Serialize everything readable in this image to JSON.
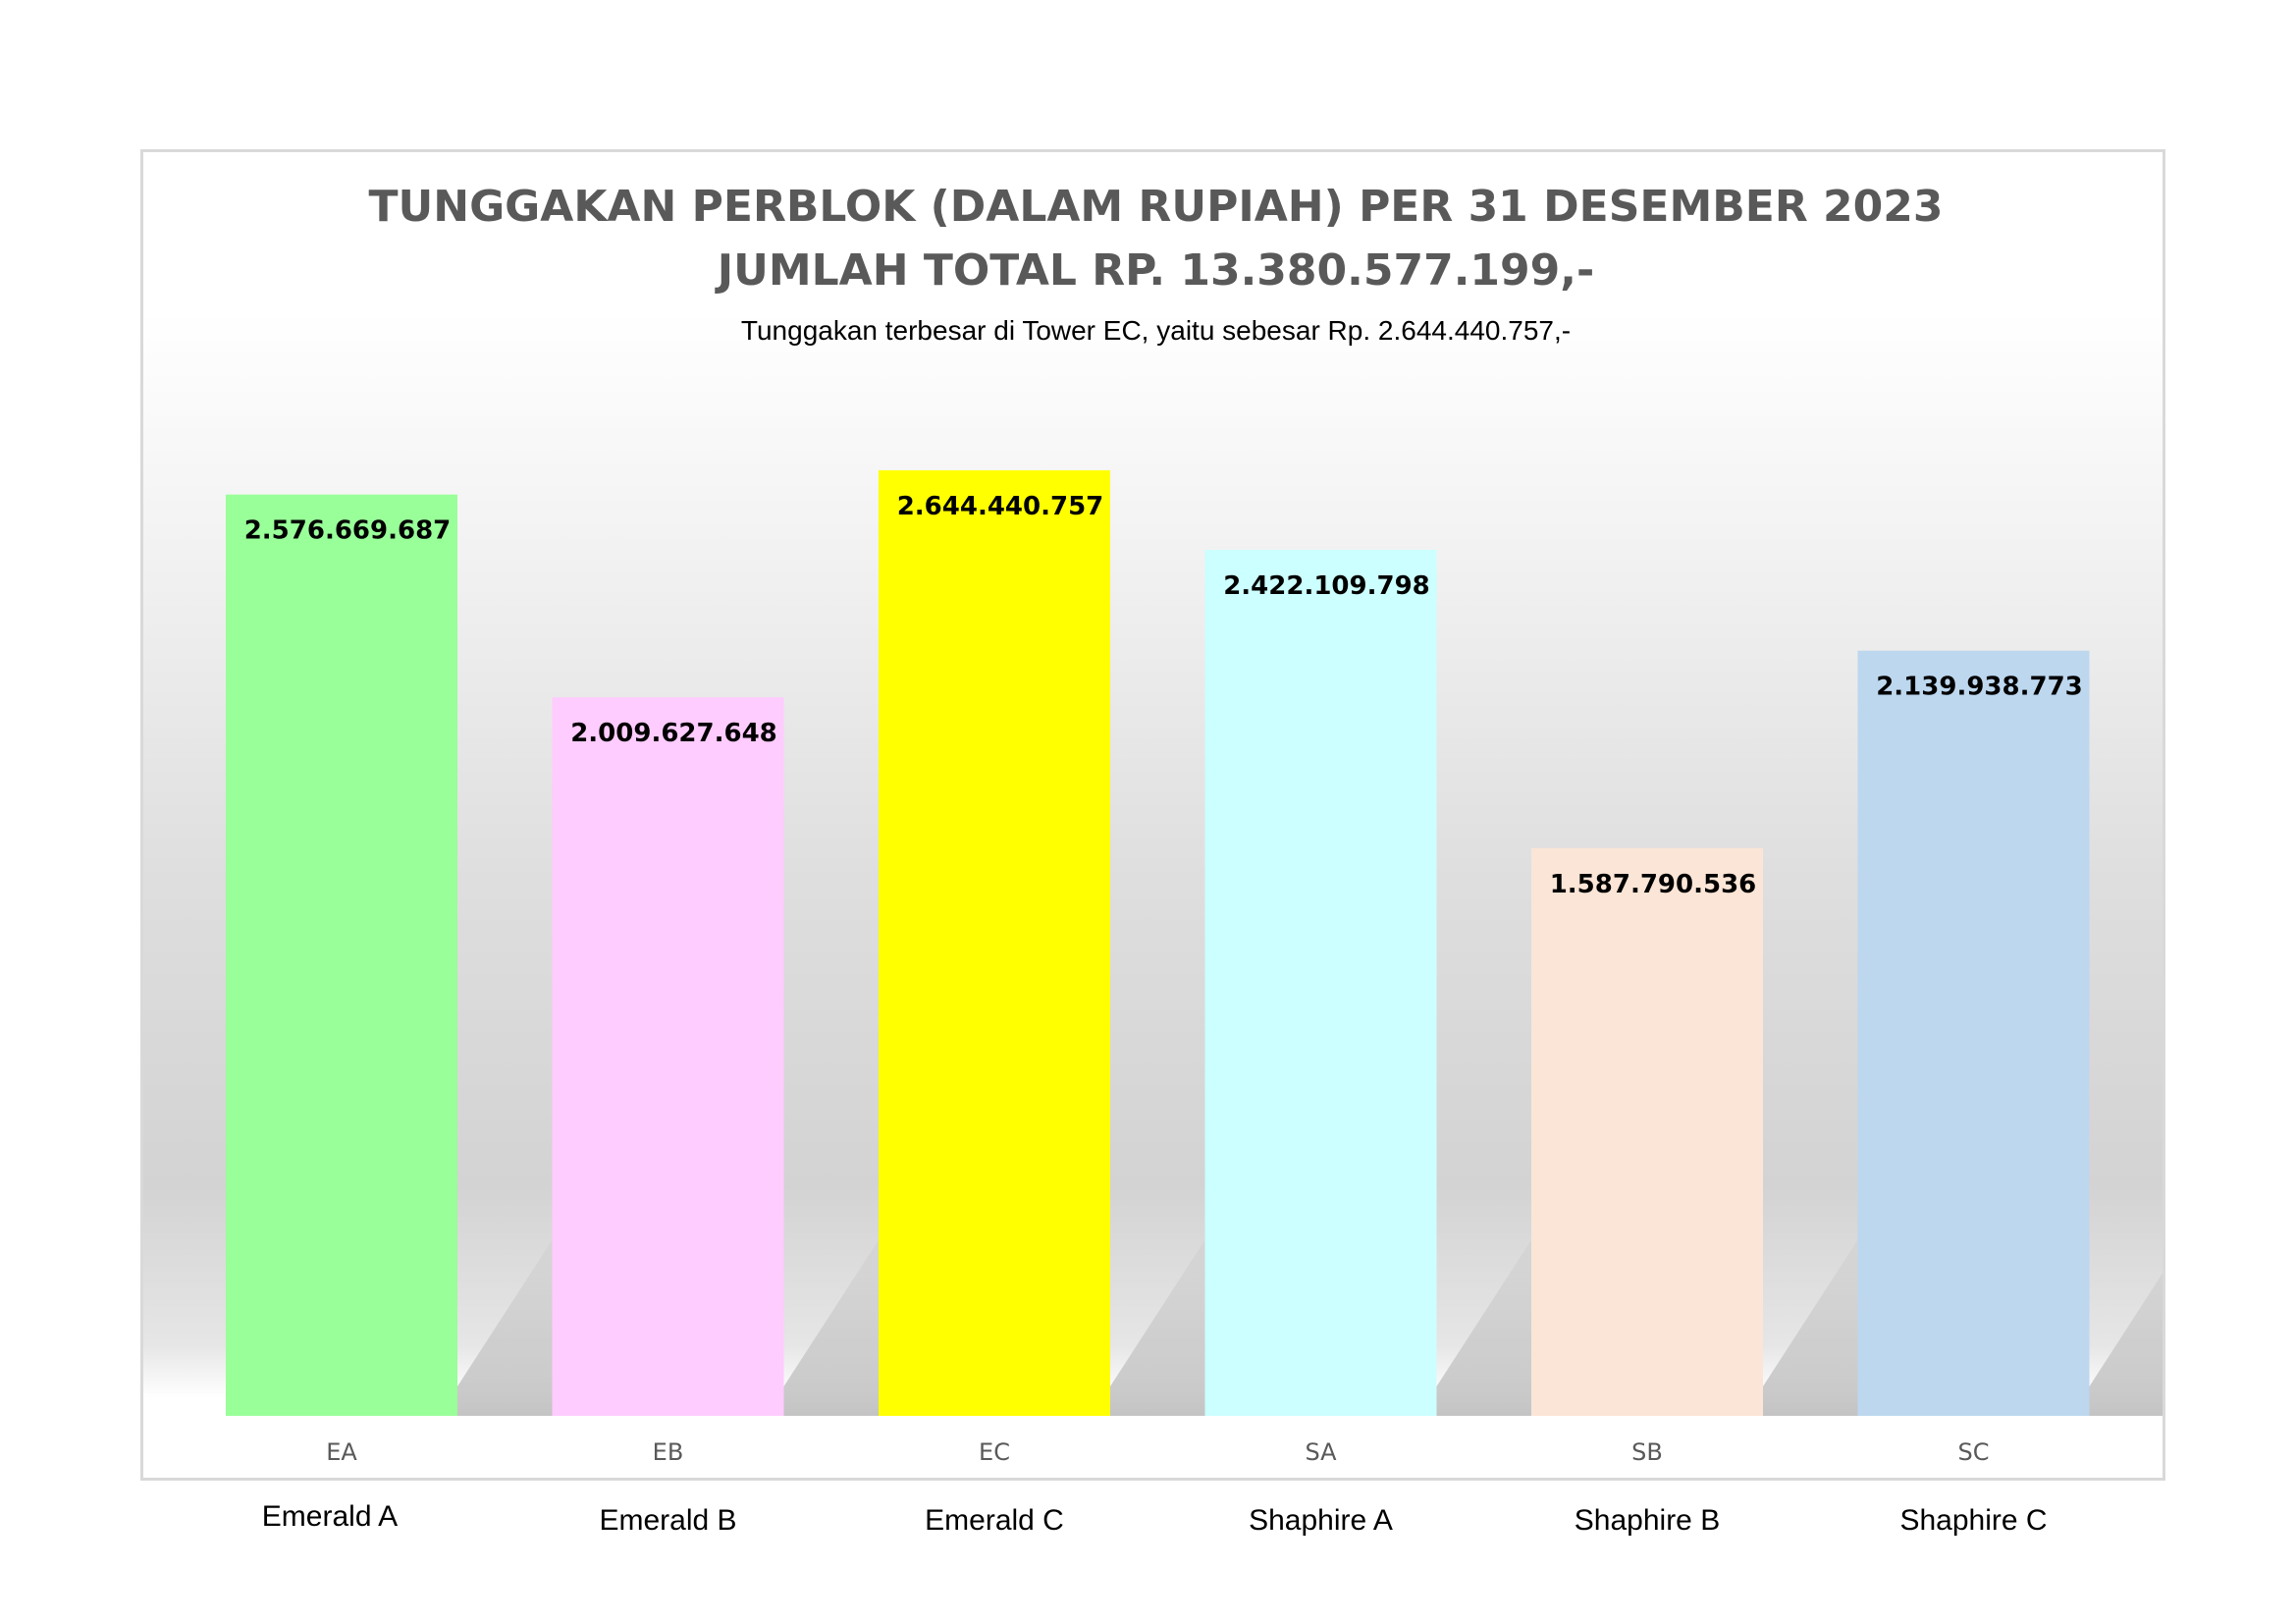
{
  "chart_data": {
    "type": "bar",
    "title": "TUNGGAKAN PERBLOK (DALAM RUPIAH) PER 31 DESEMBER 2023",
    "title_line2": "JUMLAH TOTAL RP. 13.380.577.199,-",
    "subtitle": "Tunggakan terbesar di Tower EC, yaitu sebesar Rp. 2.644.440.757,-",
    "categories": [
      "EA",
      "EB",
      "EC",
      "SA",
      "SB",
      "SC"
    ],
    "values": [
      2576669687,
      2009627648,
      2644440757,
      2422109798,
      1587790536,
      2139938773
    ],
    "data_labels": [
      "2.576.669.687",
      "2.009.627.648",
      "2.644.440.757",
      "2.422.109.798",
      "1.587.790.536",
      "2.139.938.773"
    ],
    "bar_colors": [
      "#99ff99",
      "#ffccff",
      "#ffff00",
      "#ccffff",
      "#fbe5d6",
      "#bdd7ee"
    ],
    "ylim": [
      0,
      2644440757
    ],
    "grid": false,
    "legend": "none"
  },
  "block_names": [
    "Emerald A",
    "Emerald B",
    "Emerald C",
    "Shaphire A",
    "Shaphire B",
    "Shaphire C"
  ]
}
